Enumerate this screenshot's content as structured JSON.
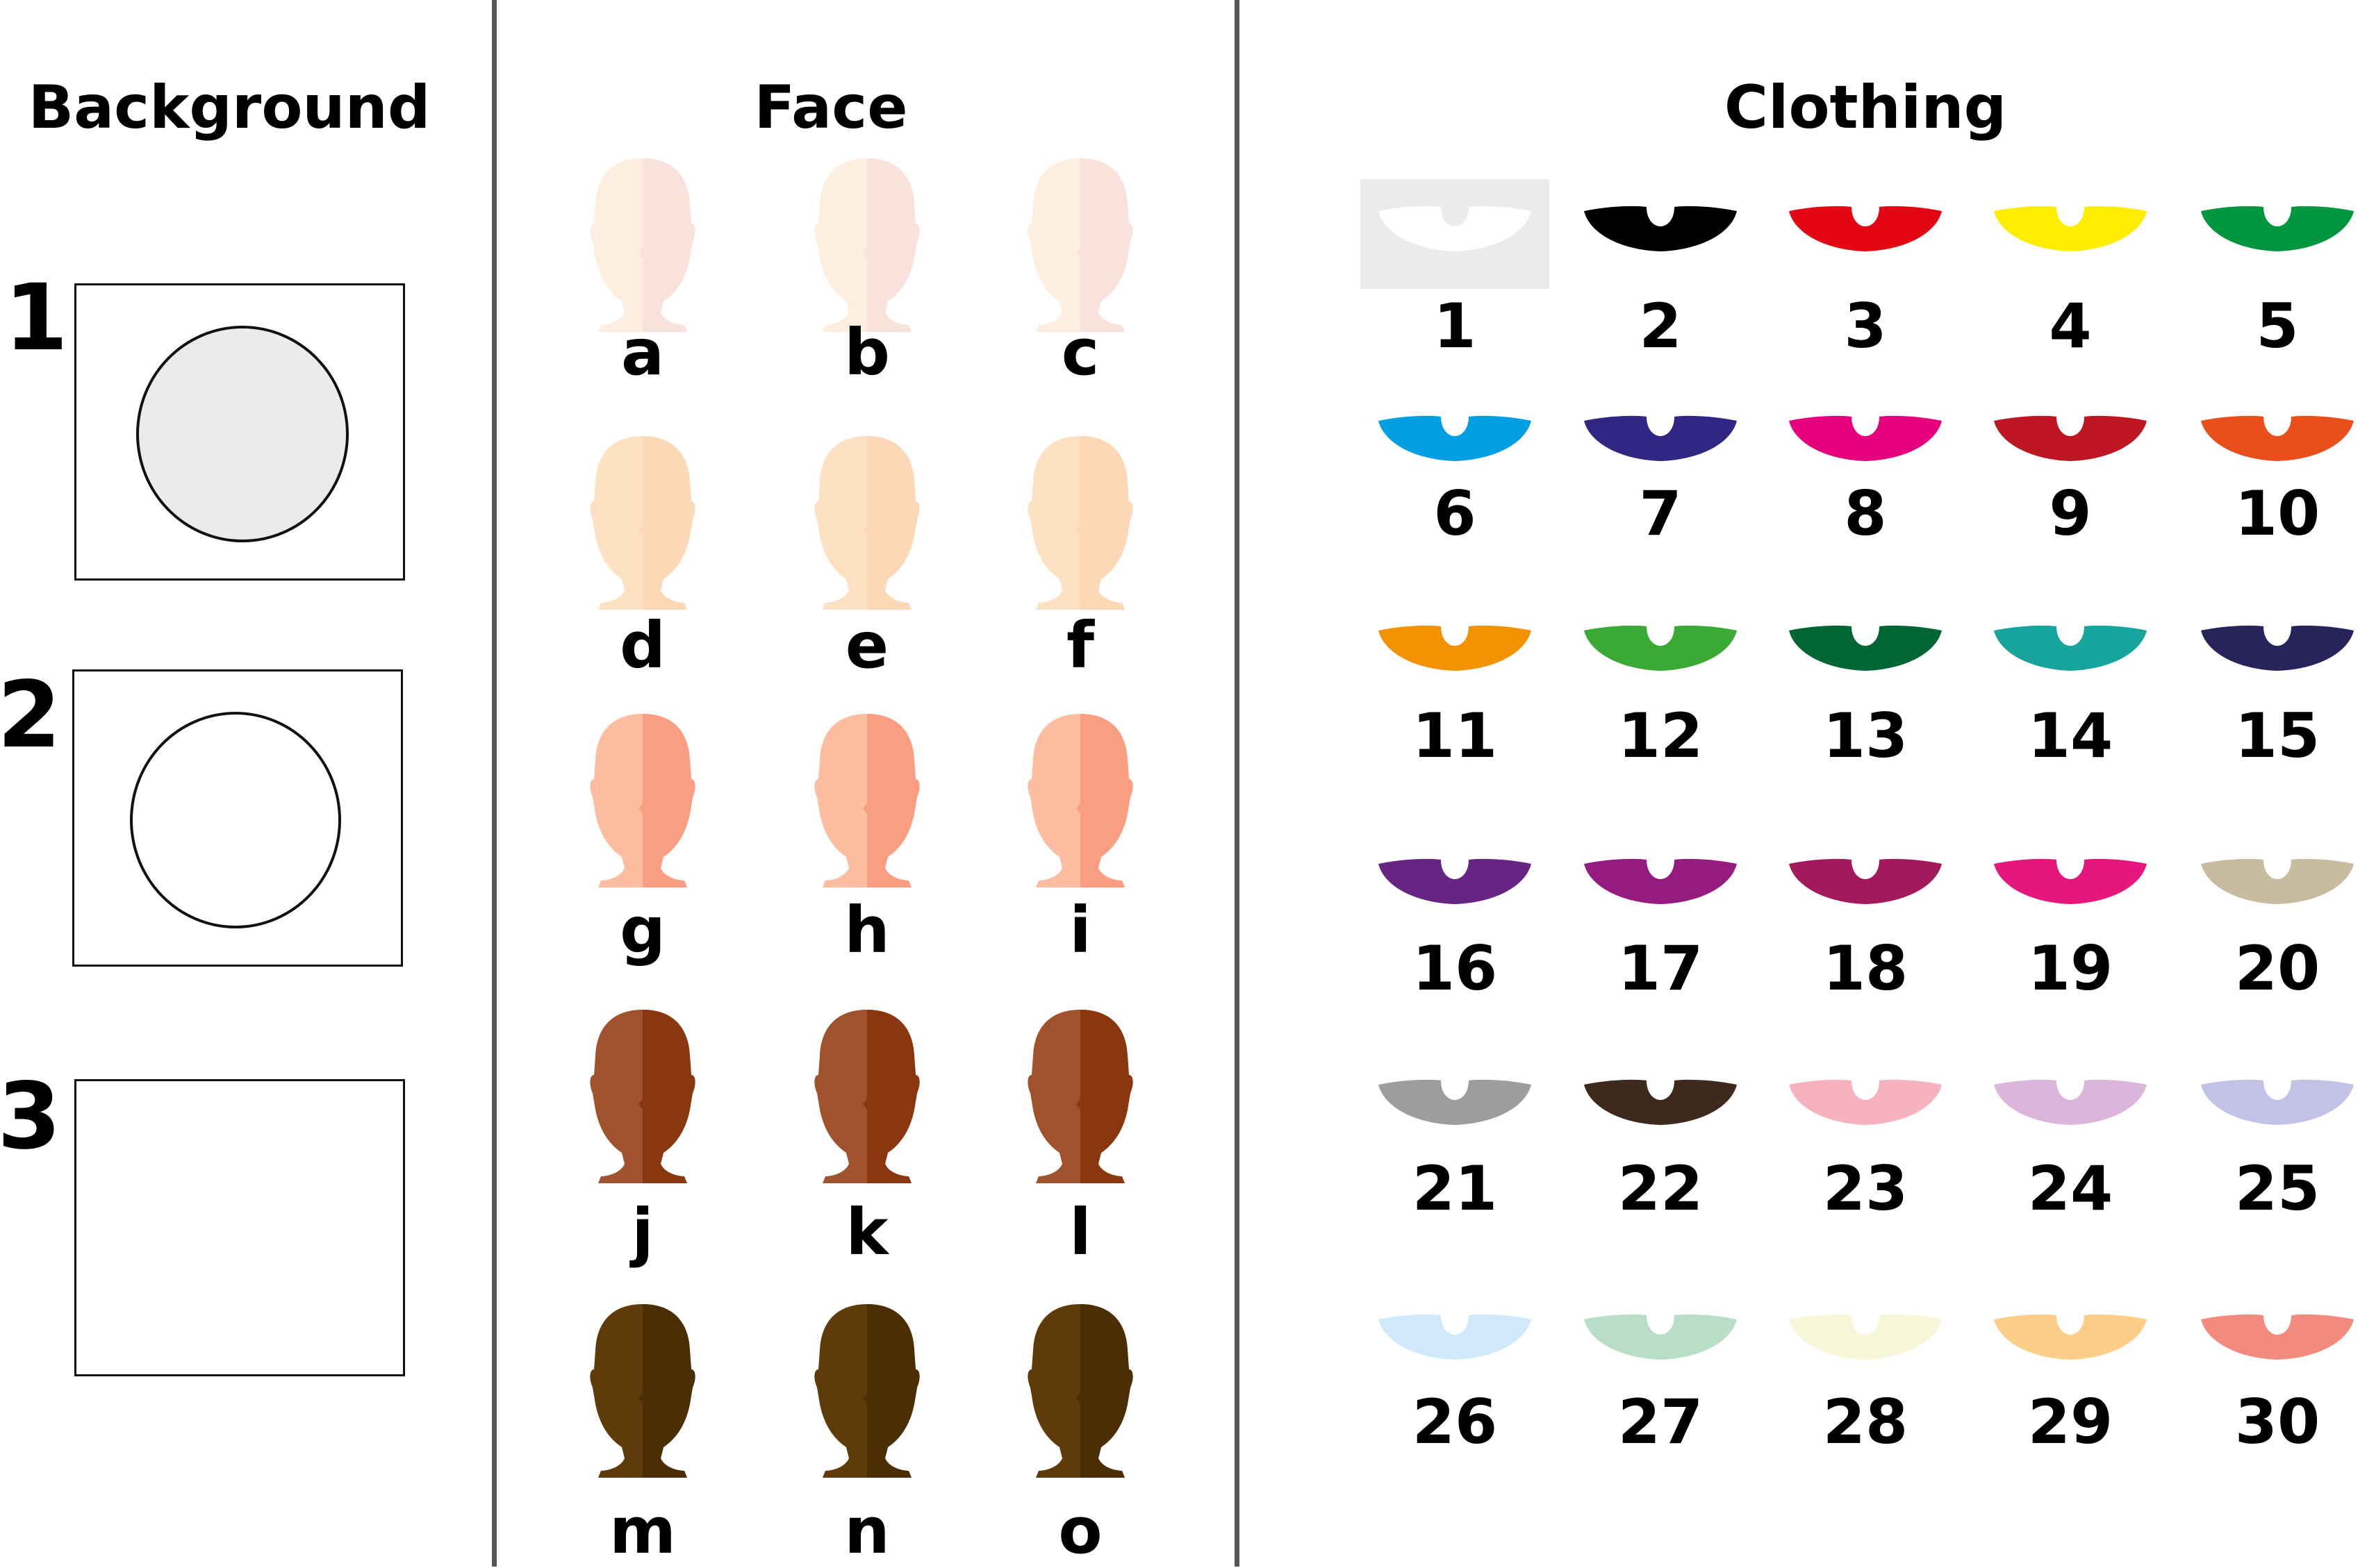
{
  "headings": {
    "background": "Background",
    "face": "Face",
    "clothing": "Clothing"
  },
  "background": {
    "options": [
      {
        "label": "1",
        "circle_fill": "#ebebeb",
        "has_circle": true
      },
      {
        "label": "2",
        "circle_fill": "#ffffff",
        "has_circle": true
      },
      {
        "label": "3",
        "has_circle": false
      }
    ]
  },
  "face": {
    "options": [
      {
        "label": "a",
        "light": "#fdeee0",
        "shade": "#f9e2dc"
      },
      {
        "label": "b",
        "light": "#fdeee0",
        "shade": "#f9e2dc"
      },
      {
        "label": "c",
        "light": "#fdeee0",
        "shade": "#f9e2dc"
      },
      {
        "label": "d",
        "light": "#fde1c2",
        "shade": "#fcd8b6"
      },
      {
        "label": "e",
        "light": "#fde1c2",
        "shade": "#fcd8b6"
      },
      {
        "label": "f",
        "light": "#fde1c2",
        "shade": "#fcd8b6"
      },
      {
        "label": "g",
        "light": "#fdbda0",
        "shade": "#f99e80"
      },
      {
        "label": "h",
        "light": "#fdbda0",
        "shade": "#f99e80"
      },
      {
        "label": "i",
        "light": "#fdbda0",
        "shade": "#f99e80"
      },
      {
        "label": "j",
        "light": "#a0522d",
        "shade": "#8a3710"
      },
      {
        "label": "k",
        "light": "#a0522d",
        "shade": "#8a3710"
      },
      {
        "label": "l",
        "light": "#a0522d",
        "shade": "#8a3710"
      },
      {
        "label": "m",
        "light": "#603b0a",
        "shade": "#4c2e04"
      },
      {
        "label": "n",
        "light": "#603b0a",
        "shade": "#4c2e04"
      },
      {
        "label": "o",
        "light": "#603b0a",
        "shade": "#4c2e04"
      }
    ]
  },
  "clothing": {
    "options": [
      {
        "label": "1",
        "color": "#ffffff"
      },
      {
        "label": "2",
        "color": "#000000"
      },
      {
        "label": "3",
        "color": "#e30613"
      },
      {
        "label": "4",
        "color": "#ffed00"
      },
      {
        "label": "5",
        "color": "#009640"
      },
      {
        "label": "6",
        "color": "#009fe3"
      },
      {
        "label": "7",
        "color": "#312783"
      },
      {
        "label": "8",
        "color": "#e6007e"
      },
      {
        "label": "9",
        "color": "#be1622"
      },
      {
        "label": "10",
        "color": "#e94e1b"
      },
      {
        "label": "11",
        "color": "#f39200"
      },
      {
        "label": "12",
        "color": "#3aaa35"
      },
      {
        "label": "13",
        "color": "#006633"
      },
      {
        "label": "14",
        "color": "#16a49d"
      },
      {
        "label": "15",
        "color": "#29235c"
      },
      {
        "label": "16",
        "color": "#662483"
      },
      {
        "label": "17",
        "color": "#951b81"
      },
      {
        "label": "18",
        "color": "#a3195b"
      },
      {
        "label": "19",
        "color": "#e6177c"
      },
      {
        "label": "20",
        "color": "#c9bb9f"
      },
      {
        "label": "21",
        "color": "#9d9d9c"
      },
      {
        "label": "22",
        "color": "#3e2a1c"
      },
      {
        "label": "23",
        "color": "#f6b3be"
      },
      {
        "label": "24",
        "color": "#dcb6da"
      },
      {
        "label": "25",
        "color": "#c1c2e6"
      },
      {
        "label": "26",
        "color": "#d0eafb"
      },
      {
        "label": "27",
        "color": "#b8dec6"
      },
      {
        "label": "28",
        "color": "#f7f6d8"
      },
      {
        "label": "29",
        "color": "#fecd88"
      },
      {
        "label": "30",
        "color": "#f28b7d"
      }
    ]
  }
}
